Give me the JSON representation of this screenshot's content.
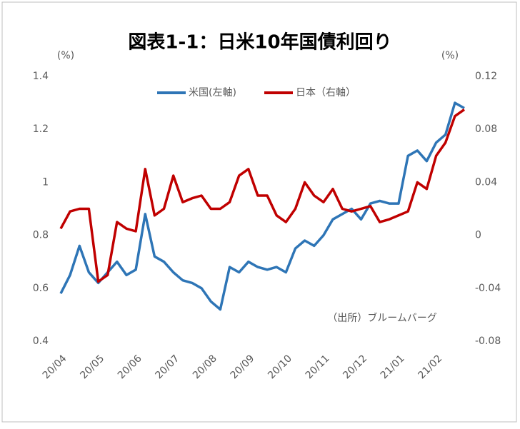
{
  "chart_data": {
    "type": "line",
    "title": "図表1-1：日米10年国債利回り",
    "y_unit": "(%)",
    "y2_unit": "(%)",
    "annotation": "（出所）ブルームバーグ",
    "categories": [
      "20/04",
      null,
      null,
      null,
      "20/05",
      null,
      null,
      null,
      "20/06",
      null,
      null,
      null,
      "20/07",
      null,
      null,
      null,
      "20/08",
      null,
      null,
      null,
      "20/09",
      null,
      null,
      null,
      "20/10",
      null,
      null,
      null,
      "20/11",
      null,
      null,
      null,
      "20/12",
      null,
      null,
      null,
      "21/01",
      null,
      null,
      null,
      "21/02",
      null,
      null,
      null
    ],
    "series": [
      {
        "name": "米国(左軸)",
        "color": "#2e75b6",
        "values": [
          0.58,
          0.65,
          0.76,
          0.66,
          0.62,
          0.66,
          0.7,
          0.65,
          0.67,
          0.88,
          0.72,
          0.7,
          0.66,
          0.63,
          0.62,
          0.6,
          0.55,
          0.52,
          0.68,
          0.66,
          0.7,
          0.68,
          0.67,
          0.68,
          0.66,
          0.75,
          0.78,
          0.76,
          0.8,
          0.86,
          0.88,
          0.9,
          0.86,
          0.92,
          0.93,
          0.92,
          0.92,
          1.1,
          1.12,
          1.08,
          1.15,
          1.18,
          1.3,
          1.28
        ]
      },
      {
        "name": "日本（右軸）",
        "color": "#c00000",
        "axis": "y2",
        "values": [
          0.005,
          0.018,
          0.02,
          0.02,
          -0.035,
          -0.03,
          0.01,
          0.005,
          0.003,
          0.05,
          0.015,
          0.02,
          0.045,
          0.025,
          0.028,
          0.03,
          0.02,
          0.02,
          0.025,
          0.045,
          0.05,
          0.03,
          0.03,
          0.015,
          0.01,
          0.02,
          0.04,
          0.03,
          0.025,
          0.035,
          0.02,
          0.018,
          0.02,
          0.022,
          0.01,
          0.012,
          0.015,
          0.018,
          0.04,
          0.035,
          0.06,
          0.07,
          0.09,
          0.095
        ]
      }
    ],
    "ylim": [
      0.4,
      1.4
    ],
    "yticks": [
      0.4,
      0.6,
      0.8,
      1,
      1.2,
      1.4
    ],
    "y2lim": [
      -0.08,
      0.12
    ],
    "y2ticks": [
      -0.08,
      -0.04,
      0,
      0.04,
      0.08,
      0.12
    ],
    "grid": false,
    "legend": "top"
  }
}
